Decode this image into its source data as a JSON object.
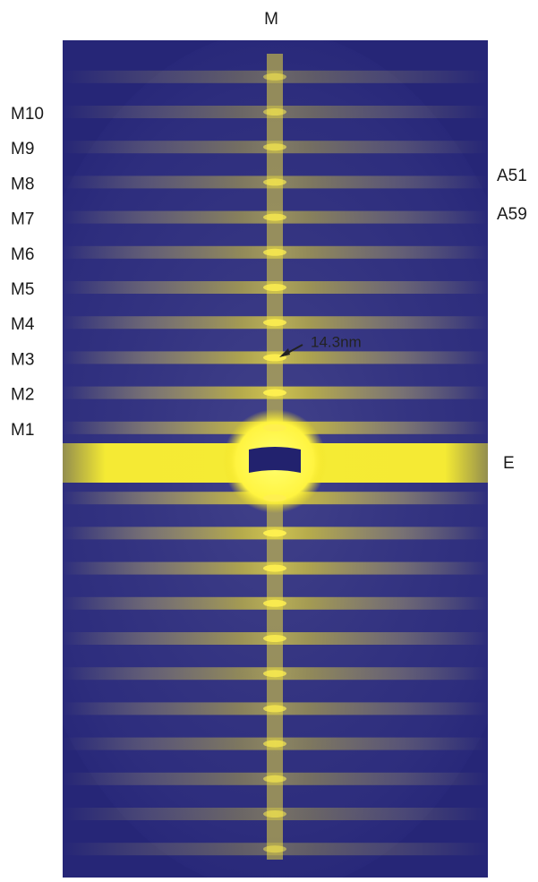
{
  "figure": {
    "top_label": "M",
    "left_labels": [
      "M10",
      "M9",
      "M8",
      "M7",
      "M6",
      "M5",
      "M4",
      "M3",
      "M2",
      "M1"
    ],
    "right_labels": [
      "A51",
      "A59"
    ],
    "equator_label": "E",
    "annotation": "14.3nm"
  }
}
